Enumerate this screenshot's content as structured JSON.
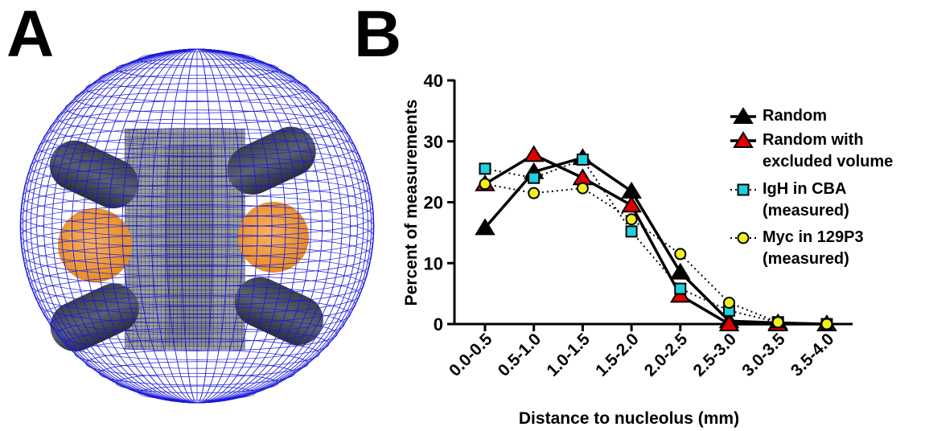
{
  "panel_labels": [
    "A",
    "B"
  ],
  "chart_data": {
    "type": "line",
    "xlabel": "Distance to nucleolus (mm)",
    "ylabel": "Percent of measurements",
    "categories": [
      "0.0-0.5",
      "0.5-1.0",
      "1.0-1.5",
      "1.5-2.0",
      "2.0-2.5",
      "2.5-3.0",
      "3.0-3.5",
      "3.5-4.0"
    ],
    "ylim": [
      0,
      40
    ],
    "yticks": [
      0,
      10,
      20,
      30,
      40
    ],
    "series": [
      {
        "name": "Random",
        "color": "#000000",
        "marker": "triangle",
        "dotted": false,
        "values": [
          15.8,
          25,
          27.3,
          21.8,
          8.5,
          0.5,
          0.2,
          0
        ]
      },
      {
        "name": "Random with\nexcluded volume",
        "color": "#e00000",
        "marker": "triangle",
        "dotted": false,
        "values": [
          23,
          27.8,
          24,
          19.5,
          4.7,
          0,
          0,
          0
        ]
      },
      {
        "name": "IgH in CBA\n(measured)",
        "color": "#20d0e0",
        "marker": "square",
        "dotted": true,
        "values": [
          25.5,
          24,
          27,
          15.2,
          5.8,
          2.2,
          0.3,
          0
        ]
      },
      {
        "name": "Myc in 129P3\n(measured)",
        "color": "#f0f020",
        "marker": "circle",
        "dotted": true,
        "values": [
          23,
          21.5,
          22.3,
          17.2,
          11.5,
          3.5,
          0.3,
          0
        ]
      }
    ]
  }
}
